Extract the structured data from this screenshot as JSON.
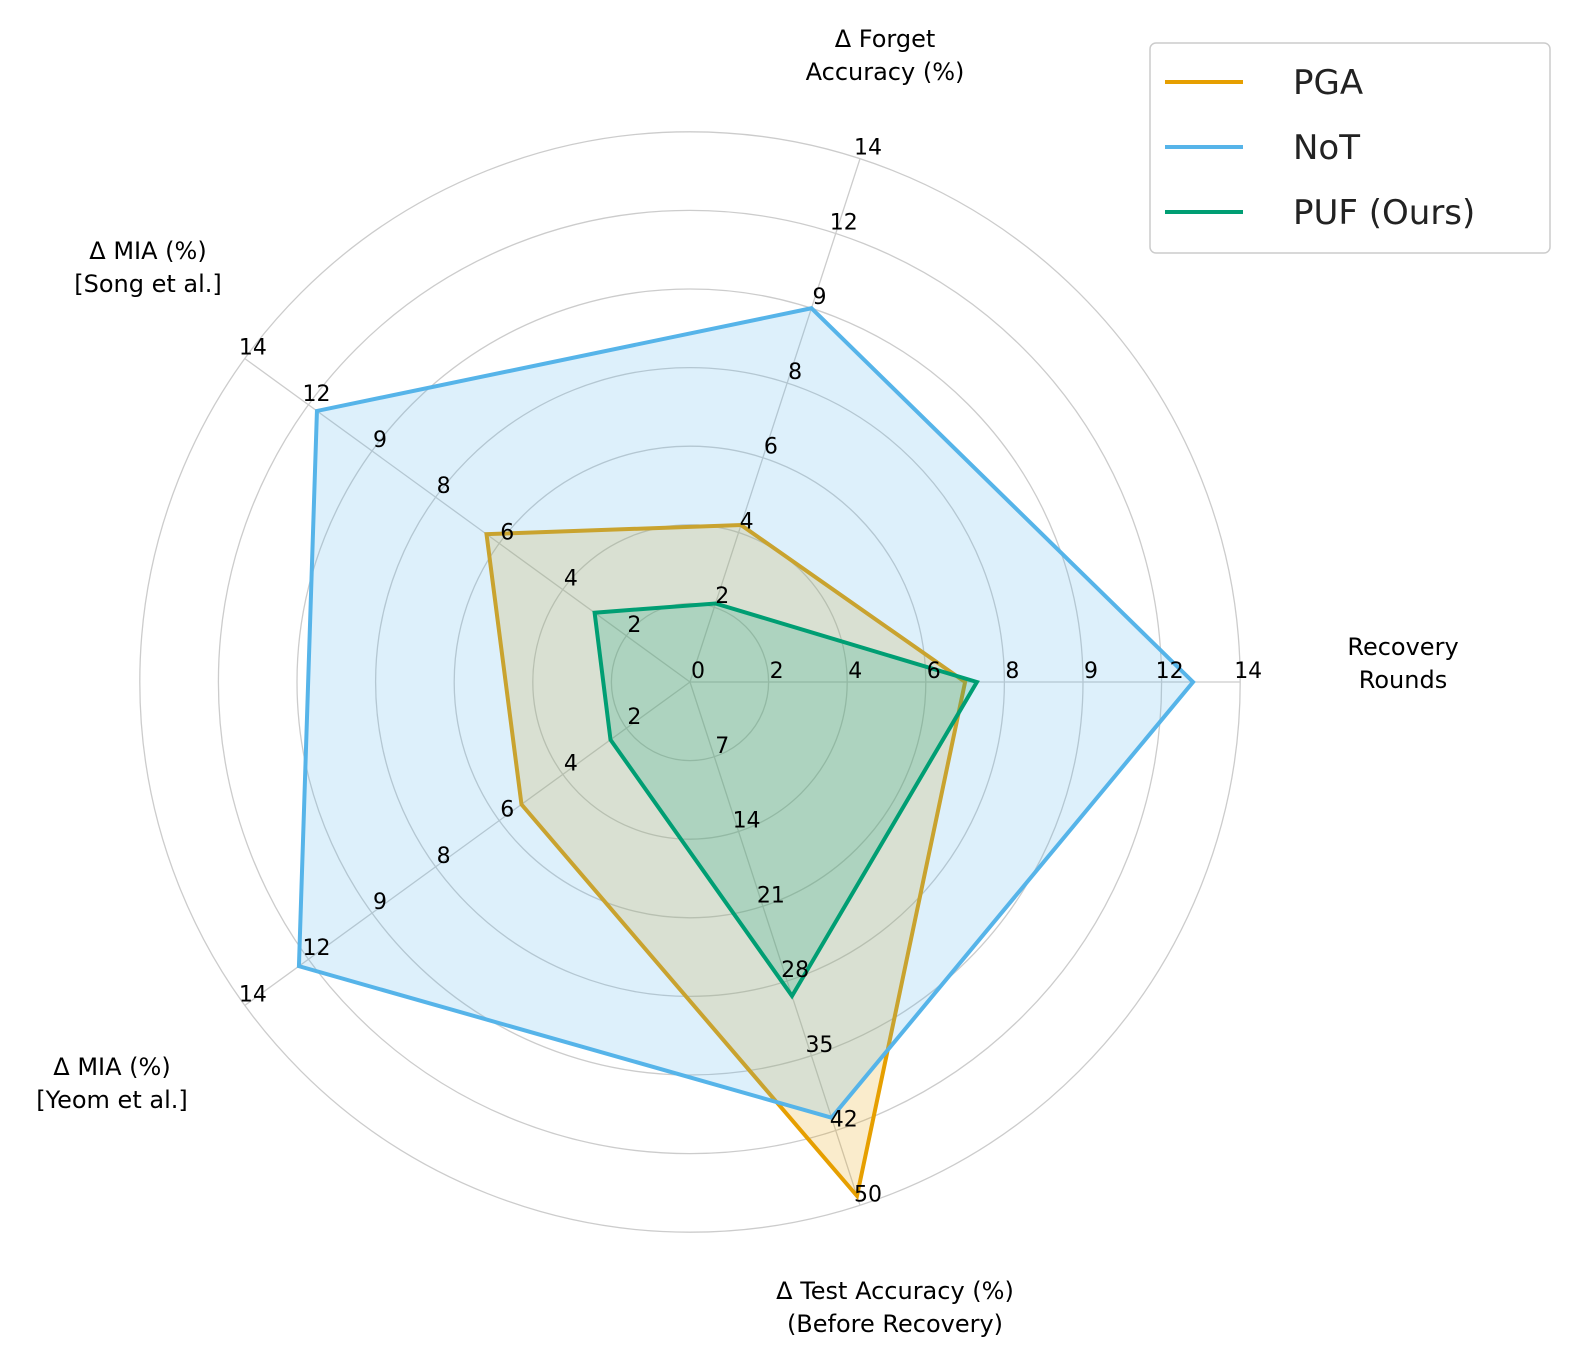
{
  "chart_data": {
    "type": "radar",
    "axes": [
      {
        "label": [
          "Recovery",
          "Rounds"
        ],
        "ticks": [
          "0",
          "2",
          "4",
          "6",
          "8",
          "9",
          "12",
          "14"
        ]
      },
      {
        "label": [
          "Δ Forget",
          "Accuracy (%)"
        ],
        "ticks": [
          "",
          "2",
          "4",
          "6",
          "8",
          "9",
          "12",
          "14"
        ]
      },
      {
        "label": [
          "Δ MIA (%)",
          "[Song et al.]"
        ],
        "ticks": [
          "",
          "2",
          "4",
          "6",
          "8",
          "9",
          "12",
          "14"
        ]
      },
      {
        "label": [
          "Δ MIA (%)",
          "[Yeom et al.]"
        ],
        "ticks": [
          "",
          "2",
          "4",
          "6",
          "8",
          "9",
          "12",
          "14"
        ]
      },
      {
        "label": [
          "Δ Test Accuracy (%)",
          "(Before Recovery)"
        ],
        "ticks": [
          "",
          "7",
          "14",
          "21",
          "28",
          "35",
          "42",
          "50"
        ]
      }
    ],
    "tick_values": [
      [
        0,
        2,
        4,
        6,
        8,
        9,
        12,
        14
      ],
      [
        0,
        2,
        4,
        6,
        8,
        9,
        12,
        14
      ],
      [
        0,
        2,
        4,
        6,
        8,
        9,
        12,
        14
      ],
      [
        0,
        2,
        4,
        6,
        8,
        9,
        12,
        14
      ],
      [
        0,
        7,
        14,
        21,
        28,
        35,
        42,
        50
      ]
    ],
    "series": [
      {
        "name": "PGA",
        "color": "#E69F00",
        "values": [
          7.0,
          4.2,
          6.4,
          5.3,
          49
        ]
      },
      {
        "name": "NoT",
        "color": "#56B4E9",
        "values": [
          12.8,
          9.0,
          11.6,
          12.3,
          40.8
        ]
      },
      {
        "name": "PUF (Ours)",
        "color": "#009E73",
        "values": [
          7.3,
          2.1,
          3.0,
          2.5,
          29.4
        ]
      }
    ],
    "legend_position": "top-right",
    "grid": true
  }
}
